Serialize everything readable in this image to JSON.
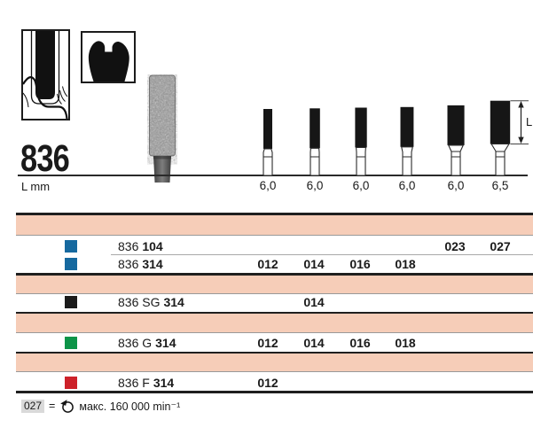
{
  "header": {
    "figure_number": "836",
    "axis_label": "L mm"
  },
  "diagram": {
    "dimension_label": "L",
    "items": [
      {
        "length_label": "6,0",
        "length_mm": 6.0,
        "iso": 12
      },
      {
        "length_label": "6,0",
        "length_mm": 6.0,
        "iso": 14
      },
      {
        "length_label": "6,0",
        "length_mm": 6.0,
        "iso": 16
      },
      {
        "length_label": "6,0",
        "length_mm": 6.0,
        "iso": 18
      },
      {
        "length_label": "6,0",
        "length_mm": 6.0,
        "iso": 23
      },
      {
        "length_label": "6,5",
        "length_mm": 6.5,
        "iso": 27
      }
    ]
  },
  "icons": {
    "pictogram_1": "bur-application-pictogram-icon",
    "pictogram_2": "crown-cross-section-pictogram-icon",
    "footnote_icon": "rotation-speed-icon"
  },
  "colors": {
    "salmon_band": "#f6cdb8",
    "blue": "#16699f",
    "black": "#1b1b1b",
    "green": "#0d9448",
    "red": "#cd2129",
    "silhouette": "#161616",
    "thick_line": "#1f1f1f",
    "thin_line": "#999999",
    "footnote_code_bg": "#d9d9d9"
  },
  "table": {
    "size_columns": [
      "012",
      "014",
      "016",
      "018",
      "023",
      "027"
    ],
    "groups": [
      {
        "rows": [
          {
            "swatch": "blue",
            "label_regular": "836",
            "label_bold": "104",
            "values": [
              "",
              "",
              "",
              "",
              "023",
              "027"
            ]
          },
          {
            "swatch": "blue",
            "label_regular": "836",
            "label_bold": "314",
            "values": [
              "012",
              "014",
              "016",
              "018",
              "",
              ""
            ]
          }
        ]
      },
      {
        "rows": [
          {
            "swatch": "black",
            "label_regular": "836 SG",
            "label_bold": "314",
            "values": [
              "",
              "014",
              "",
              "",
              "",
              ""
            ]
          }
        ]
      },
      {
        "rows": [
          {
            "swatch": "green",
            "label_regular": "836 G",
            "label_bold": "314",
            "values": [
              "012",
              "014",
              "016",
              "018",
              "",
              ""
            ]
          }
        ]
      },
      {
        "rows": [
          {
            "swatch": "red",
            "label_regular": "836 F",
            "label_bold": "314",
            "values": [
              "012",
              "",
              "",
              "",
              "",
              ""
            ]
          }
        ]
      }
    ]
  },
  "footnote": {
    "code": "027",
    "equals": "=",
    "text": "макс. 160 000 min⁻¹"
  }
}
